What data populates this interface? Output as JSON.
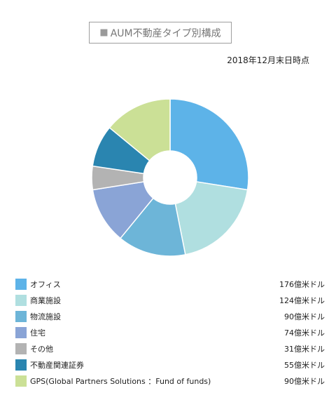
{
  "chart_data": {
    "type": "pie",
    "title": "AUM不動産タイプ別構成",
    "subtitle": "2018年12月末日時点",
    "unit": "億米ドル",
    "categories": [
      "オフィス",
      "商業施設",
      "物流施設",
      "住宅",
      "その他",
      "不動産関連証券",
      "GPS(Global Partners Solutions ：Fund of funds)"
    ],
    "values": [
      176,
      124,
      90,
      74,
      31,
      55,
      90
    ],
    "value_labels": [
      "176億米ドル",
      "124億米ドル",
      "90億米ドル",
      "74億米ドル",
      "31億米ドル",
      "55億米ドル",
      "90億米ドル"
    ],
    "colors": [
      "#5db3e8",
      "#b0dfe0",
      "#6db5d8",
      "#8aa4d6",
      "#b3b3b3",
      "#2a85b0",
      "#cbe096"
    ],
    "donut": true,
    "legend_position": "bottom"
  }
}
